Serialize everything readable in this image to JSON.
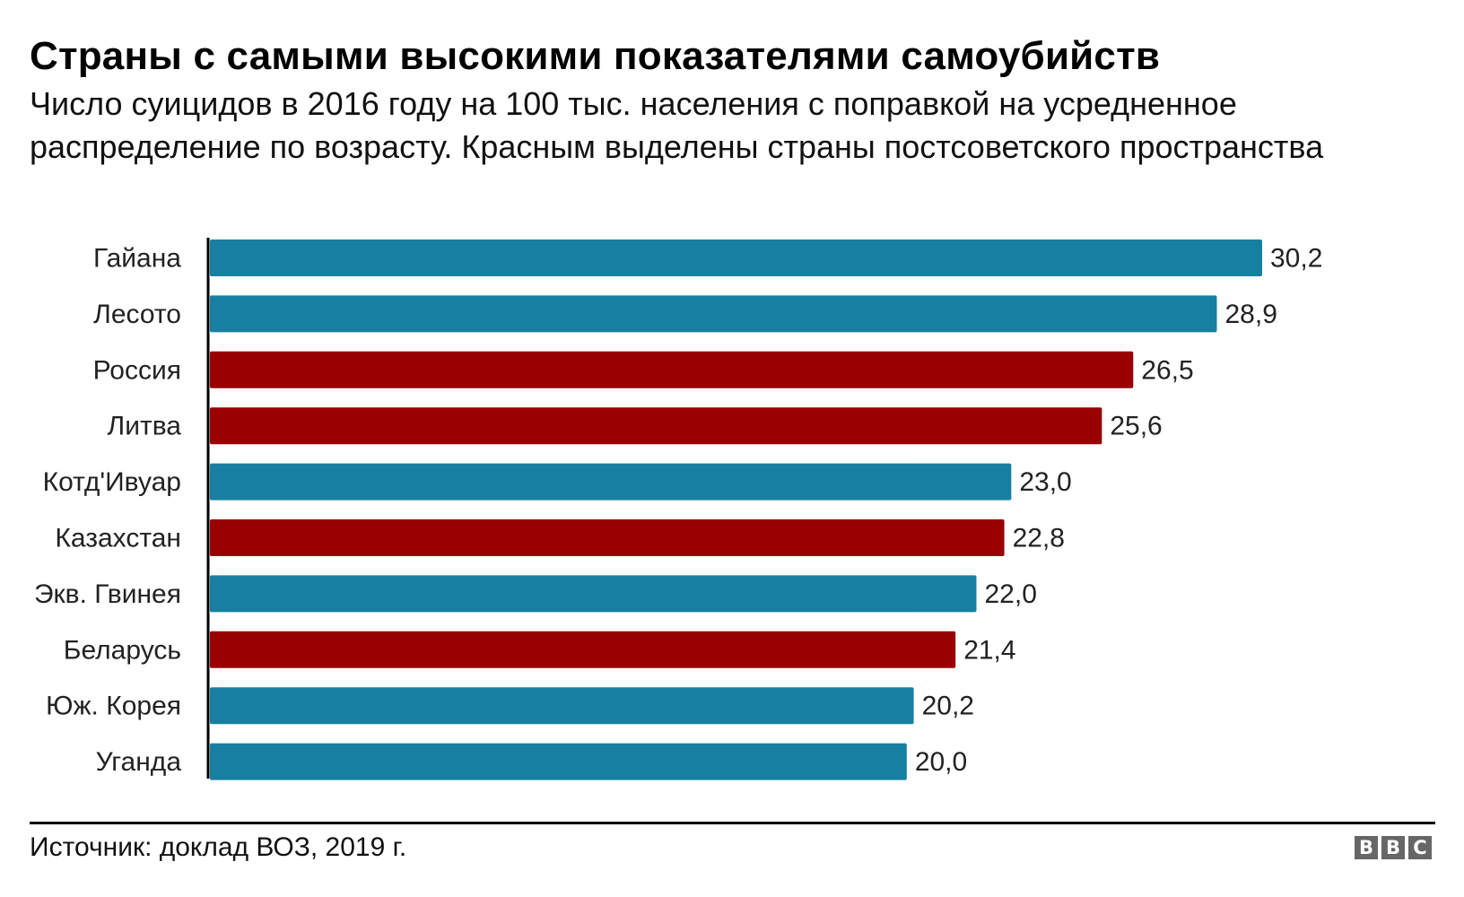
{
  "header": {
    "title": "Страны с самыми высокими показателями самоубийств",
    "subtitle": "Число суицидов в 2016 году на 100 тыс. населения с поправкой на усредненное распределение по возрасту. Красным выделены страны постсоветского пространства"
  },
  "footer": {
    "source": "Источник: доклад ВОЗ, 2019 г.",
    "logo_letters": [
      "B",
      "B",
      "C"
    ]
  },
  "colors": {
    "default_bar": "#1780a1",
    "highlight_bar": "#990000",
    "axis": "#000000",
    "logo": "#666666"
  },
  "chart_data": {
    "type": "bar",
    "orientation": "horizontal",
    "title": "Страны с самыми высокими показателями самоубийств",
    "xlabel": "",
    "ylabel": "",
    "xlim": [
      0,
      30.2
    ],
    "grid": false,
    "legend": "none",
    "categories": [
      "Гайана",
      "Лесото",
      "Россия",
      "Литва",
      "Котд'Ивуар",
      "Казахстан",
      "Экв. Гвинея",
      "Беларусь",
      "Юж. Корея",
      "Уганда"
    ],
    "values": [
      30.2,
      28.9,
      26.5,
      25.6,
      23.0,
      22.8,
      22.0,
      21.4,
      20.2,
      20.0
    ],
    "value_labels": [
      "30,2",
      "28,9",
      "26,5",
      "25,6",
      "23,0",
      "22,8",
      "22,0",
      "21,4",
      "20,2",
      "20,0"
    ],
    "post_soviet": [
      false,
      false,
      true,
      true,
      false,
      true,
      false,
      true,
      false,
      false
    ]
  }
}
